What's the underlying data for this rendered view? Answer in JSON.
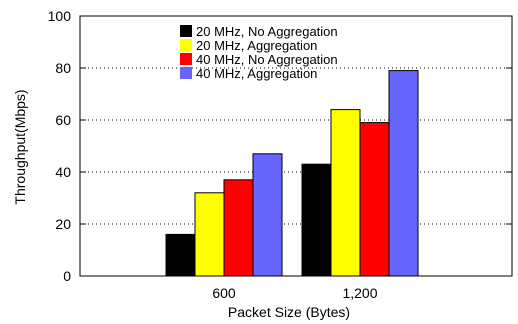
{
  "chart_data": {
    "type": "bar",
    "title": "",
    "xlabel": "Packet Size (Bytes)",
    "ylabel": "Throughput(Mbps)",
    "ylim": [
      0,
      100
    ],
    "yticks": [
      "0",
      "20",
      "40",
      "60",
      "80",
      "100"
    ],
    "grid": "horizontal dotted",
    "legend_position": "top-center",
    "categories": [
      "600",
      "1,200"
    ],
    "series": [
      {
        "name": "20 MHz, No Aggregation",
        "color": "#000000",
        "values": [
          16,
          43
        ]
      },
      {
        "name": "20 MHz, Aggregation",
        "color": "#ffff00",
        "values": [
          32,
          64
        ]
      },
      {
        "name": "40 MHz, No Aggregation",
        "color": "#ff0000",
        "values": [
          37,
          59
        ]
      },
      {
        "name": "40 MHz, Aggregation",
        "color": "#6666ff",
        "values": [
          47,
          79
        ]
      }
    ]
  }
}
